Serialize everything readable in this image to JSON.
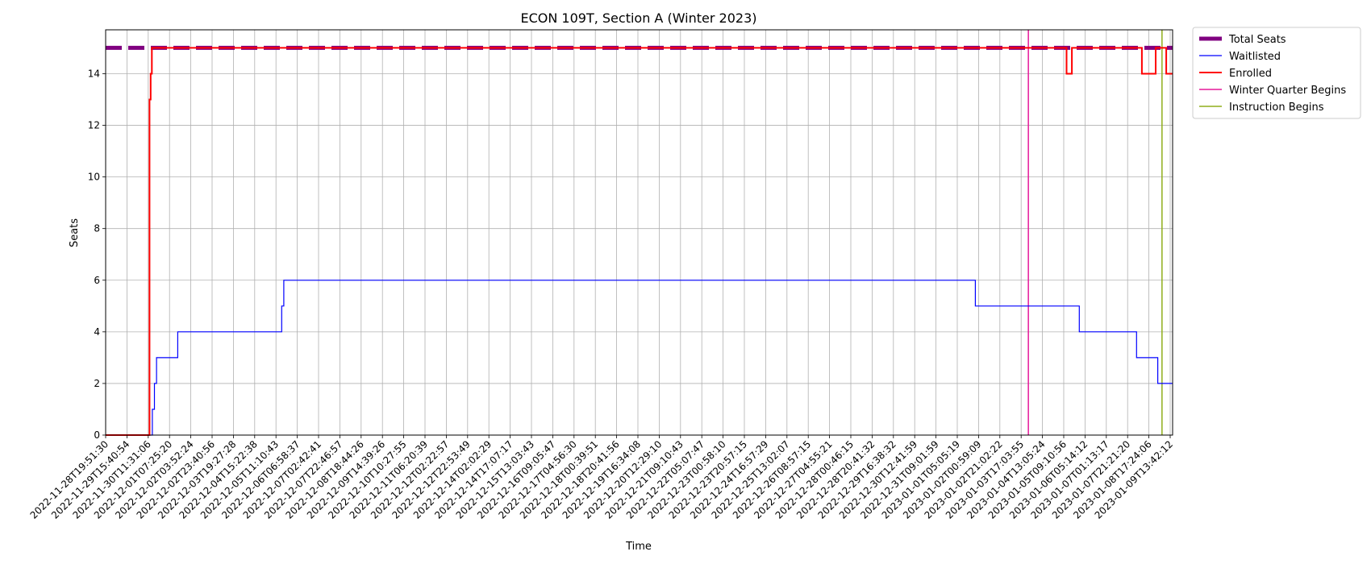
{
  "chart_data": {
    "type": "line",
    "title": "ECON 109T, Section A (Winter 2023)",
    "xlabel": "Time",
    "ylabel": "Seats",
    "ylim": [
      0,
      15.7
    ],
    "y_ticks": [
      0,
      2,
      4,
      6,
      8,
      10,
      12,
      14
    ],
    "grid": true,
    "legend_position": "outside-top-right",
    "x_tick_labels": [
      "2022-11-28T19:51:30",
      "2022-11-29T15:40:54",
      "2022-11-30T11:31:06",
      "2022-12-01T07:25:20",
      "2022-12-02T03:52:24",
      "2022-12-02T23:40:56",
      "2022-12-03T19:27:28",
      "2022-12-04T15:22:38",
      "2022-12-05T11:10:43",
      "2022-12-06T06:58:37",
      "2022-12-07T02:42:41",
      "2022-12-07T22:46:57",
      "2022-12-08T18:44:26",
      "2022-12-09T14:39:26",
      "2022-12-10T10:27:55",
      "2022-12-11T06:20:39",
      "2022-12-12T02:22:57",
      "2022-12-12T22:53:49",
      "2022-12-14T02:02:29",
      "2022-12-14T17:07:17",
      "2022-12-15T13:03:43",
      "2022-12-16T09:05:47",
      "2022-12-17T04:56:30",
      "2022-12-18T00:39:51",
      "2022-12-18T20:41:56",
      "2022-12-19T16:34:08",
      "2022-12-20T12:29:10",
      "2022-12-21T09:10:43",
      "2022-12-22T05:07:47",
      "2022-12-23T00:58:10",
      "2022-12-23T20:57:15",
      "2022-12-24T16:57:29",
      "2022-12-25T13:02:07",
      "2022-12-26T08:57:15",
      "2022-12-27T04:55:21",
      "2022-12-28T00:46:15",
      "2022-12-28T20:41:32",
      "2022-12-29T16:38:32",
      "2022-12-30T12:41:59",
      "2022-12-31T09:01:59",
      "2023-01-01T05:05:19",
      "2023-01-02T00:59:09",
      "2023-01-02T21:02:22",
      "2023-01-03T17:03:55",
      "2023-01-04T13:05:24",
      "2023-01-05T09:10:56",
      "2023-01-06T05:14:12",
      "2023-01-07T01:13:17",
      "2023-01-07T21:21:20",
      "2023-01-08T17:24:06",
      "2023-01-09T13:42:12"
    ],
    "series": [
      {
        "name": "Total Seats",
        "color": "#800080",
        "style": "dashed-thick",
        "points": [
          [
            0,
            15
          ],
          [
            50.3,
            15
          ]
        ]
      },
      {
        "name": "Waitlisted",
        "color": "#0000ff",
        "style": "step",
        "points": [
          [
            0,
            0
          ],
          [
            2.2,
            0
          ],
          [
            2.2,
            1
          ],
          [
            2.3,
            1
          ],
          [
            2.3,
            2
          ],
          [
            2.4,
            2
          ],
          [
            2.4,
            3
          ],
          [
            3.4,
            3
          ],
          [
            3.4,
            4
          ],
          [
            8.3,
            4
          ],
          [
            8.3,
            5
          ],
          [
            8.4,
            5
          ],
          [
            8.4,
            6
          ],
          [
            41.0,
            6
          ],
          [
            41.0,
            5
          ],
          [
            45.9,
            5
          ],
          [
            45.9,
            4
          ],
          [
            48.6,
            4
          ],
          [
            48.6,
            3
          ],
          [
            49.6,
            3
          ],
          [
            49.6,
            2
          ],
          [
            50.3,
            2
          ]
        ]
      },
      {
        "name": "Enrolled",
        "color": "#ff0000",
        "style": "step-thick",
        "points": [
          [
            0,
            0
          ],
          [
            2.07,
            0
          ],
          [
            2.07,
            13
          ],
          [
            2.12,
            13
          ],
          [
            2.12,
            14
          ],
          [
            2.18,
            14
          ],
          [
            2.18,
            15
          ],
          [
            45.3,
            15
          ],
          [
            45.3,
            14
          ],
          [
            45.55,
            14
          ],
          [
            45.55,
            15
          ],
          [
            48.85,
            15
          ],
          [
            48.85,
            14
          ],
          [
            49.5,
            14
          ],
          [
            49.5,
            15
          ],
          [
            50.0,
            15
          ],
          [
            50.0,
            14
          ],
          [
            50.3,
            14
          ]
        ]
      },
      {
        "name": "Winter Quarter Begins",
        "color": "#e5189a",
        "style": "vline",
        "x": 43.5
      },
      {
        "name": "Instruction Begins",
        "color": "#8fae1b",
        "style": "vline",
        "x": 49.8
      }
    ]
  }
}
